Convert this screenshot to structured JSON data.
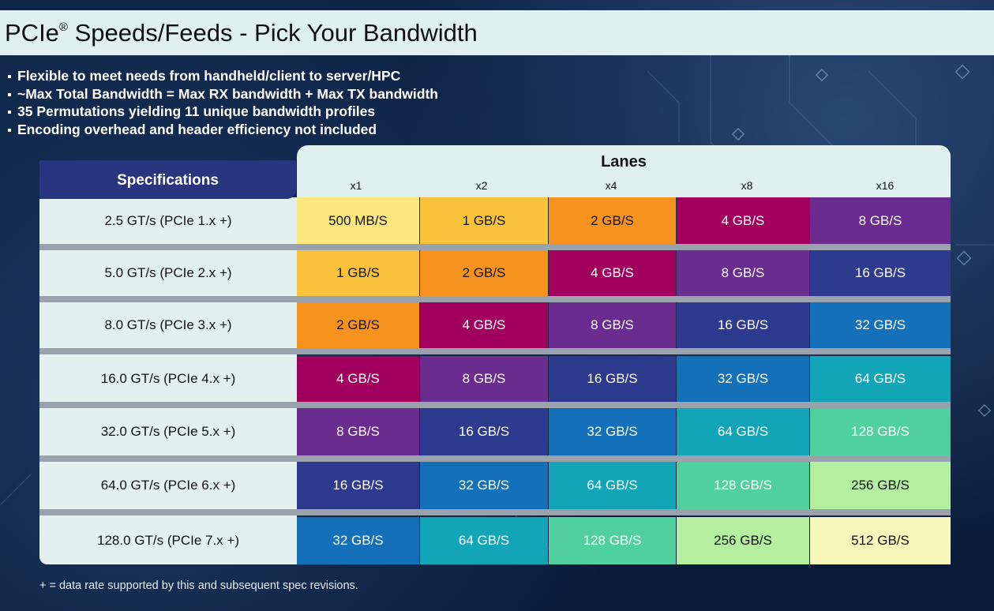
{
  "title": "PCIe",
  "title_sup": "®",
  "title_rest": " Speeds/Feeds - Pick Your Bandwidth",
  "bullets": [
    "Flexible to meet needs from handheld/client to server/HPC",
    "~Max Total Bandwidth = Max RX bandwidth + Max TX bandwidth",
    "35 Permutations yielding 11 unique bandwidth profiles",
    "Encoding overhead and header efficiency not included"
  ],
  "table": {
    "lanes_title": "Lanes",
    "spec_header": "Specifications",
    "lanes": [
      "x1",
      "x2",
      "x4",
      "x8",
      "x16"
    ],
    "rows": [
      {
        "spec": "2.5 GT/s (PCIe 1.x +)",
        "values": [
          "500 MB/S",
          "1 GB/S",
          "2 GB/S",
          "4 GB/S",
          "8 GB/S"
        ]
      },
      {
        "spec": "5.0 GT/s (PCIe 2.x +)",
        "values": [
          "1 GB/S",
          "2 GB/S",
          "4 GB/S",
          "8 GB/S",
          "16 GB/S"
        ]
      },
      {
        "spec": "8.0 GT/s (PCIe 3.x +)",
        "values": [
          "2 GB/S",
          "4 GB/S",
          "8 GB/S",
          "16 GB/S",
          "32 GB/S"
        ]
      },
      {
        "spec": "16.0 GT/s (PCIe 4.x +)",
        "values": [
          "4 GB/S",
          "8 GB/S",
          "16 GB/S",
          "32 GB/S",
          "64 GB/S"
        ]
      },
      {
        "spec": "32.0 GT/s (PCIe 5.x +)",
        "values": [
          "8 GB/S",
          "16 GB/S",
          "32 GB/S",
          "64 GB/S",
          "128 GB/S"
        ]
      },
      {
        "spec": "64.0 GT/s (PCIe 6.x +)",
        "values": [
          "16 GB/S",
          "32 GB/S",
          "64 GB/S",
          "128 GB/S",
          "256 GB/S"
        ]
      },
      {
        "spec": "128.0 GT/s (PCIe 7.x +)",
        "values": [
          "32 GB/S",
          "64 GB/S",
          "128 GB/S",
          "256 GB/S",
          "512 GB/S"
        ]
      }
    ],
    "bandwidth_colors": {
      "500 MB/S": {
        "bg": "#fbe77e",
        "fg": "#111111"
      },
      "1 GB/S": {
        "bg": "#f9c23b",
        "fg": "#111111"
      },
      "2 GB/S": {
        "bg": "#f6921e",
        "fg": "#111111"
      },
      "4 GB/S": {
        "bg": "#a1005e",
        "fg": "#ffffff"
      },
      "8 GB/S": {
        "bg": "#6b2c90",
        "fg": "#ffffff"
      },
      "16 GB/S": {
        "bg": "#2e3a8e",
        "fg": "#ffffff"
      },
      "32 GB/S": {
        "bg": "#1470b8",
        "fg": "#ffffff"
      },
      "64 GB/S": {
        "bg": "#12a5b8",
        "fg": "#ffffff"
      },
      "128 GB/S": {
        "bg": "#4fd09e",
        "fg": "#ffffff"
      },
      "256 GB/S": {
        "bg": "#b3ef9f",
        "fg": "#111111"
      },
      "512 GB/S": {
        "bg": "#f8f7bb",
        "fg": "#111111"
      }
    }
  },
  "footnote": "+ = data rate supported by this and subsequent spec revisions."
}
